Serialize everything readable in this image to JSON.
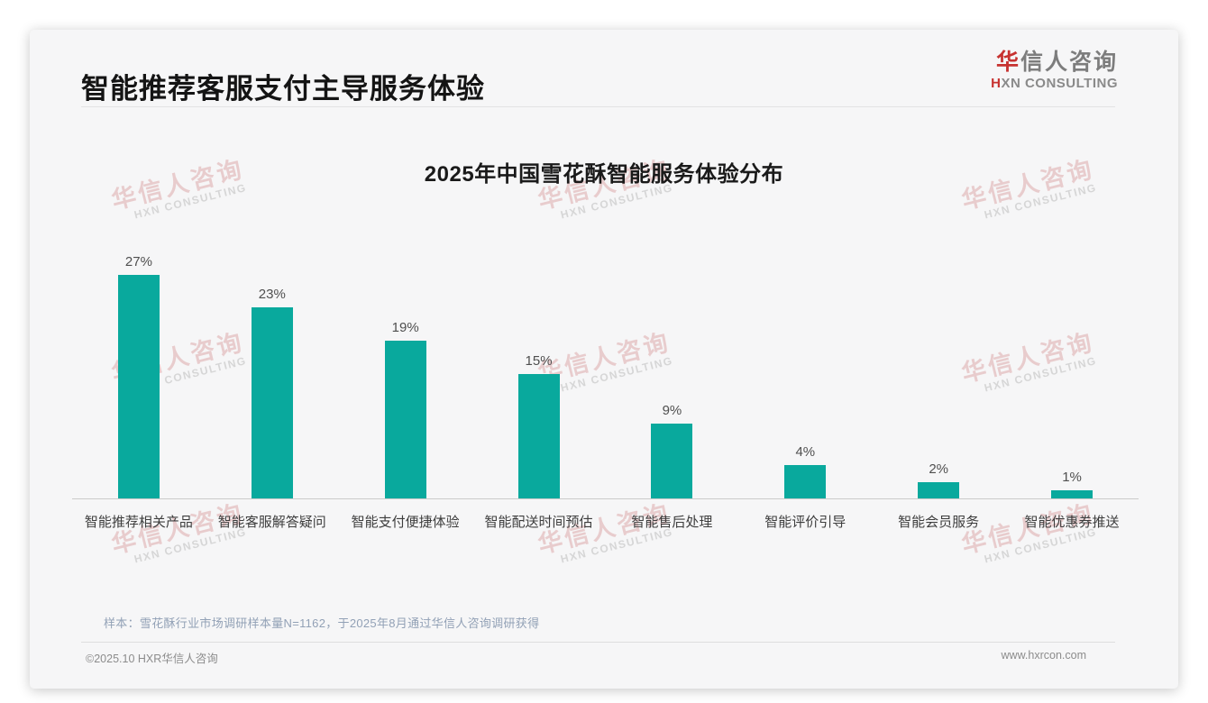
{
  "page": {
    "title": "智能推荐客服支付主导服务体验",
    "logo": {
      "zh_accent": "华",
      "zh_rest": "信人咨询",
      "en_accent": "H",
      "en_rest": "XN CONSULTING"
    },
    "watermark": {
      "line1": "华信人咨询",
      "line2": "HXN CONSULTING"
    },
    "note": "样本：雪花酥行业市场调研样本量N=1162，于2025年8月通过华信人咨询调研获得",
    "footer": {
      "left": "©2025.10 HXR华信人咨询",
      "right": "www.hxrcon.com"
    },
    "colors": {
      "bar": "#09a99d",
      "accent_red": "#c73230",
      "axis_line": "#cbcbcb",
      "note_text": "#92a1b6"
    }
  },
  "chart_data": {
    "type": "bar",
    "title": "2025年中国雪花酥智能服务体验分布",
    "categories": [
      "智能推荐相关产品",
      "智能客服解答疑问",
      "智能支付便捷体验",
      "智能配送时间预估",
      "智能售后处理",
      "智能评价引导",
      "智能会员服务",
      "智能优惠券推送"
    ],
    "values": [
      27,
      23,
      19,
      15,
      9,
      4,
      2,
      1
    ],
    "data_labels": [
      "27%",
      "23%",
      "19%",
      "15%",
      "9%",
      "4%",
      "2%",
      "1%"
    ],
    "unit": "%",
    "ylim": [
      0,
      30
    ],
    "bar_color": "#09a99d",
    "grid": false,
    "legend": false,
    "xlabel": "",
    "ylabel": ""
  }
}
